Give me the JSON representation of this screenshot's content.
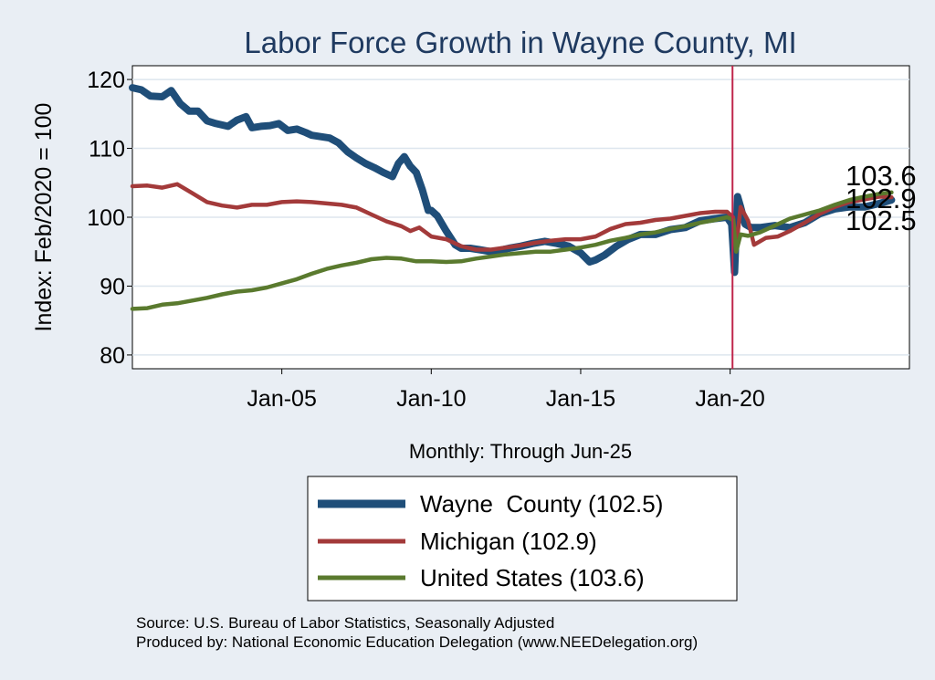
{
  "chart_data": {
    "type": "line",
    "title": "Labor Force Growth in Wayne  County, MI",
    "ylabel": "Index: Feb/2020 = 100",
    "xlabel": "Monthly: Through Jun-25",
    "ylim": [
      78,
      122
    ],
    "xlim": [
      2000.0,
      2026.0
    ],
    "yticks": [
      80,
      90,
      100,
      110,
      120
    ],
    "xticks": [
      {
        "value": 2005.0,
        "label": "Jan-05"
      },
      {
        "value": 2010.0,
        "label": "Jan-10"
      },
      {
        "value": 2015.0,
        "label": "Jan-15"
      },
      {
        "value": 2020.0,
        "label": "Jan-20"
      }
    ],
    "reference_line": {
      "x": 2020.08,
      "color": "#c0264b"
    },
    "grid": true,
    "legend_position": "bottom",
    "end_labels": [
      "103.6",
      "102.9",
      "102.5"
    ],
    "series": [
      {
        "name": "Wayne  County (102.5)",
        "color": "#1f4e79",
        "x": [
          2000.0,
          2000.3,
          2000.6,
          2001.0,
          2001.3,
          2001.6,
          2001.9,
          2002.2,
          2002.5,
          2002.8,
          2003.2,
          2003.5,
          2003.8,
          2004.0,
          2004.3,
          2004.6,
          2004.9,
          2005.2,
          2005.5,
          2005.8,
          2006.0,
          2006.3,
          2006.6,
          2006.9,
          2007.2,
          2007.5,
          2007.8,
          2008.1,
          2008.4,
          2008.7,
          2008.9,
          2009.1,
          2009.3,
          2009.5,
          2009.7,
          2009.9,
          2010.0,
          2010.2,
          2010.5,
          2010.8,
          2011.0,
          2011.3,
          2011.6,
          2012.0,
          2012.3,
          2012.6,
          2013.0,
          2013.4,
          2013.8,
          2014.2,
          2014.6,
          2015.0,
          2015.3,
          2015.5,
          2015.8,
          2016.2,
          2016.6,
          2017.0,
          2017.5,
          2018.0,
          2018.5,
          2019.0,
          2019.5,
          2019.9,
          2020.05,
          2020.15,
          2020.25,
          2020.35,
          2020.5,
          2020.7,
          2021.0,
          2021.5,
          2022.0,
          2022.5,
          2023.0,
          2023.5,
          2024.0,
          2024.5,
          2025.0,
          2025.4
        ],
        "y": [
          118.8,
          118.5,
          117.6,
          117.5,
          118.4,
          116.5,
          115.4,
          115.4,
          114.0,
          113.6,
          113.2,
          114.1,
          114.6,
          113.0,
          113.2,
          113.3,
          113.6,
          112.6,
          112.8,
          112.3,
          111.9,
          111.7,
          111.5,
          110.8,
          109.5,
          108.6,
          107.8,
          107.2,
          106.5,
          105.9,
          107.8,
          108.8,
          107.4,
          106.5,
          104.0,
          101.0,
          101.0,
          100.2,
          98.0,
          96.0,
          95.5,
          95.5,
          95.3,
          95.0,
          95.2,
          95.5,
          95.8,
          96.2,
          96.5,
          96.2,
          95.8,
          94.8,
          93.5,
          93.8,
          94.5,
          95.8,
          96.8,
          97.5,
          97.5,
          98.2,
          98.5,
          99.5,
          99.8,
          100.0,
          99.0,
          92.0,
          103.0,
          101.5,
          99.0,
          98.5,
          98.5,
          98.8,
          98.5,
          99.2,
          100.5,
          101.2,
          101.5,
          101.5,
          102.0,
          102.5
        ]
      },
      {
        "name": "Michigan (102.9)",
        "color": "#a33a3a",
        "x": [
          2000.0,
          2000.5,
          2001.0,
          2001.5,
          2002.0,
          2002.5,
          2003.0,
          2003.5,
          2004.0,
          2004.5,
          2005.0,
          2005.5,
          2006.0,
          2006.5,
          2007.0,
          2007.5,
          2008.0,
          2008.5,
          2009.0,
          2009.3,
          2009.6,
          2010.0,
          2010.5,
          2011.0,
          2011.5,
          2012.0,
          2012.5,
          2013.0,
          2013.5,
          2014.0,
          2014.5,
          2015.0,
          2015.5,
          2016.0,
          2016.5,
          2017.0,
          2017.5,
          2018.0,
          2018.5,
          2019.0,
          2019.5,
          2019.9,
          2020.1,
          2020.2,
          2020.35,
          2020.6,
          2020.8,
          2021.2,
          2021.6,
          2022.0,
          2022.5,
          2023.0,
          2023.5,
          2024.0,
          2024.5,
          2025.0,
          2025.4
        ],
        "y": [
          104.5,
          104.6,
          104.3,
          104.8,
          103.5,
          102.2,
          101.7,
          101.4,
          101.8,
          101.8,
          102.2,
          102.3,
          102.2,
          102.0,
          101.8,
          101.4,
          100.4,
          99.4,
          98.7,
          98.0,
          98.5,
          97.2,
          96.8,
          95.8,
          95.3,
          95.3,
          95.6,
          95.9,
          96.3,
          96.6,
          96.8,
          96.8,
          97.2,
          98.3,
          99.0,
          99.2,
          99.6,
          99.8,
          100.2,
          100.6,
          100.8,
          100.8,
          100.0,
          95.5,
          101.5,
          99.5,
          96.0,
          97.0,
          97.2,
          98.0,
          99.2,
          100.5,
          101.5,
          102.2,
          102.6,
          103.0,
          102.9
        ]
      },
      {
        "name": "United States (103.6)",
        "color": "#5a7a2e",
        "x": [
          2000.0,
          2000.5,
          2001.0,
          2001.5,
          2002.0,
          2002.5,
          2003.0,
          2003.5,
          2004.0,
          2004.5,
          2005.0,
          2005.5,
          2006.0,
          2006.5,
          2007.0,
          2007.5,
          2008.0,
          2008.5,
          2009.0,
          2009.5,
          2010.0,
          2010.5,
          2011.0,
          2011.5,
          2012.0,
          2012.5,
          2013.0,
          2013.5,
          2014.0,
          2014.5,
          2015.0,
          2015.5,
          2016.0,
          2016.5,
          2017.0,
          2017.5,
          2018.0,
          2018.5,
          2019.0,
          2019.5,
          2019.9,
          2020.1,
          2020.2,
          2020.35,
          2020.6,
          2021.0,
          2021.5,
          2022.0,
          2022.5,
          2023.0,
          2023.5,
          2024.0,
          2024.5,
          2025.0,
          2025.4
        ],
        "y": [
          86.7,
          86.8,
          87.3,
          87.5,
          87.9,
          88.3,
          88.8,
          89.2,
          89.4,
          89.8,
          90.4,
          91.0,
          91.8,
          92.5,
          93.0,
          93.4,
          93.9,
          94.1,
          94.0,
          93.6,
          93.6,
          93.5,
          93.6,
          94.0,
          94.3,
          94.6,
          94.8,
          95.0,
          95.0,
          95.3,
          95.6,
          96.0,
          96.6,
          97.0,
          97.5,
          97.8,
          98.3,
          98.7,
          99.2,
          99.6,
          100.0,
          99.6,
          95.0,
          97.5,
          97.3,
          97.8,
          98.8,
          99.8,
          100.4,
          101.0,
          101.8,
          102.5,
          103.0,
          103.4,
          103.6
        ]
      }
    ]
  },
  "footer": {
    "source": "Source: U.S. Bureau of Labor Statistics, Seasonally Adjusted",
    "produced_by": "Produced by: National Economic Education Delegation (www.NEEDelegation.org)"
  }
}
